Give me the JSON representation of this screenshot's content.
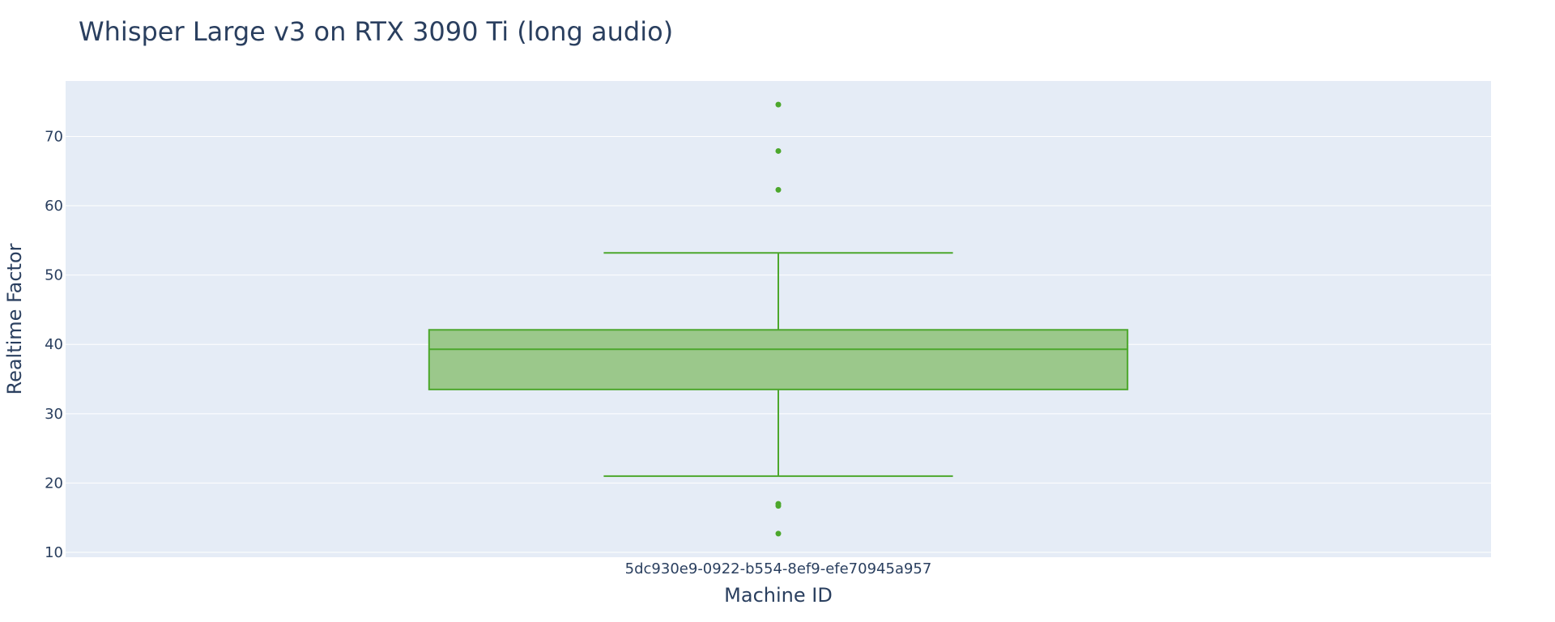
{
  "chart_data": {
    "type": "box",
    "title": "Whisper Large v3 on RTX 3090 Ti (long audio)",
    "xlabel": "Machine ID",
    "ylabel": "Realtime Factor",
    "categories": [
      "5dc930e9-0922-b554-8ef9-efe70945a957"
    ],
    "ylim": [
      9.3,
      78
    ],
    "yticks": [
      10,
      20,
      30,
      40,
      50,
      60,
      70
    ],
    "grid": true,
    "legend": "none",
    "boxes": [
      {
        "category": "5dc930e9-0922-b554-8ef9-efe70945a957",
        "lower_whisker": 21.0,
        "q1": 33.5,
        "median": 39.3,
        "q3": 42.1,
        "upper_whisker": 53.2,
        "outliers": [
          74.6,
          67.9,
          62.3,
          17.0,
          16.7,
          12.7
        ]
      }
    ]
  },
  "colors": {
    "plot_background": "#e5ecf6",
    "grid": "#ffffff",
    "box_line": "#4ca72c",
    "box_fill": "#9bc88b",
    "text": "#2a3f5f"
  }
}
